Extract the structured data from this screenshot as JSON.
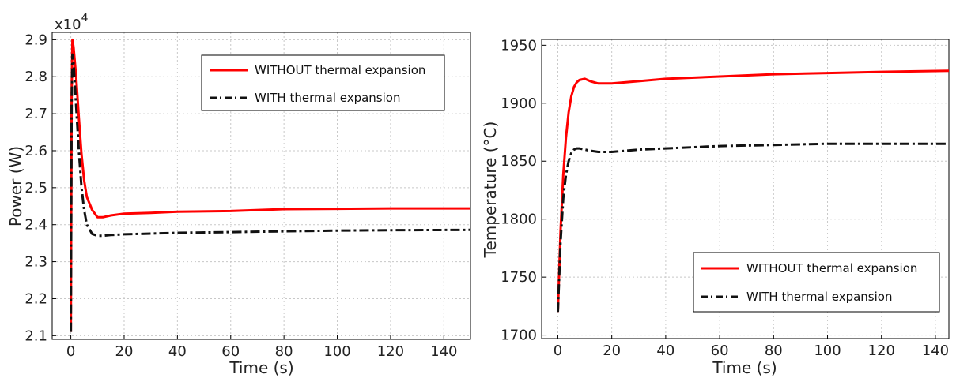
{
  "chart_data": [
    {
      "type": "line",
      "xlabel": "Time (s)",
      "ylabel": "Power (W)",
      "y_multiplier": {
        "base": "x10",
        "exponent": "4"
      },
      "xlim": [
        -7,
        150
      ],
      "ylim": [
        2.09,
        2.92
      ],
      "xticks": [
        "0",
        "20",
        "40",
        "60",
        "80",
        "100",
        "120",
        "140"
      ],
      "yticks": [
        "2.1",
        "2.2",
        "2.3",
        "2.4",
        "2.5",
        "2.6",
        "2.7",
        "2.8",
        "2.9"
      ],
      "grid": true,
      "legend_position": "top-right",
      "series": [
        {
          "name": "WITHOUT thermal expansion",
          "color": "#ff0000",
          "style": "solid",
          "x": [
            0,
            0.3,
            0.6,
            1,
            2,
            3,
            4,
            5,
            6,
            8,
            10,
            12,
            15,
            20,
            30,
            40,
            60,
            80,
            100,
            120,
            150
          ],
          "y": [
            2.11,
            2.75,
            2.9,
            2.88,
            2.8,
            2.69,
            2.59,
            2.52,
            2.475,
            2.44,
            2.42,
            2.42,
            2.425,
            2.43,
            2.432,
            2.435,
            2.437,
            2.442,
            2.443,
            2.444,
            2.444
          ]
        },
        {
          "name": "WITH thermal expansion",
          "color": "#111111",
          "style": "dashdot",
          "x": [
            0,
            0.3,
            0.6,
            1,
            2,
            3,
            4,
            5,
            6,
            8,
            10,
            12,
            15,
            20,
            30,
            40,
            60,
            80,
            100,
            120,
            150
          ],
          "y": [
            2.11,
            2.72,
            2.86,
            2.84,
            2.72,
            2.6,
            2.5,
            2.44,
            2.4,
            2.375,
            2.37,
            2.37,
            2.372,
            2.374,
            2.376,
            2.378,
            2.38,
            2.382,
            2.384,
            2.385,
            2.386
          ]
        }
      ]
    },
    {
      "type": "line",
      "xlabel": "Time (s)",
      "ylabel": "Temperature (°C)",
      "xlim": [
        -6,
        145
      ],
      "ylim": [
        1697,
        1955
      ],
      "xticks": [
        "0",
        "20",
        "40",
        "60",
        "80",
        "100",
        "120",
        "140"
      ],
      "yticks": [
        "1700",
        "1750",
        "1800",
        "1850",
        "1900",
        "1950"
      ],
      "grid": true,
      "legend_position": "bottom-right",
      "series": [
        {
          "name": "WITHOUT thermal expansion",
          "color": "#ff0000",
          "style": "solid",
          "x": [
            0,
            1,
            2,
            3,
            4,
            5,
            6,
            7,
            8,
            10,
            12,
            15,
            20,
            30,
            40,
            60,
            80,
            100,
            120,
            145
          ],
          "y": [
            1720,
            1790,
            1838,
            1870,
            1892,
            1906,
            1914,
            1918,
            1920,
            1921,
            1919,
            1917,
            1917,
            1919,
            1921,
            1923,
            1925,
            1926,
            1927,
            1928
          ]
        },
        {
          "name": "WITH thermal expansion",
          "color": "#111111",
          "style": "dashdot",
          "x": [
            0,
            1,
            2,
            3,
            4,
            5,
            6,
            7,
            8,
            10,
            12,
            15,
            20,
            30,
            40,
            60,
            80,
            100,
            120,
            145
          ],
          "y": [
            1720,
            1780,
            1818,
            1838,
            1850,
            1857,
            1860,
            1861,
            1861,
            1860,
            1859,
            1858,
            1858,
            1860,
            1861,
            1863,
            1864,
            1865,
            1865,
            1865
          ]
        }
      ]
    }
  ]
}
